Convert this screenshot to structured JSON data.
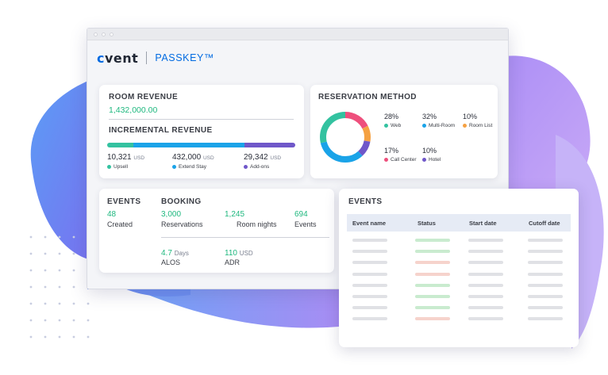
{
  "window": {
    "brand_logo": "cvent",
    "brand_logo_accent": "c",
    "brand_logo_rest": "vent",
    "product_name": "PASSKEY™"
  },
  "revenue": {
    "room_revenue_title": "ROOM REVENUE",
    "room_revenue_value": "1,432,000.00",
    "incremental_title": "INCREMENTAL REVENUE",
    "bar_shares": [
      0.14,
      0.59,
      0.27
    ],
    "bar_colors": [
      "#33c2a0",
      "#1aa3e8",
      "#6f57c9"
    ],
    "items": [
      {
        "value": "10,321",
        "unit": "USD",
        "label": "Upsell",
        "color": "#33c2a0"
      },
      {
        "value": "432,000",
        "unit": "USD",
        "label": "Extend Stay",
        "color": "#1aa3e8"
      },
      {
        "value": "29,342",
        "unit": "USD",
        "label": "Add-ons",
        "color": "#6f57c9"
      }
    ]
  },
  "reservation": {
    "title": "RESERVATION METHOD",
    "methods": [
      {
        "pct": "28%",
        "label": "Web",
        "color": "#33c2a0",
        "share": 28
      },
      {
        "pct": "32%",
        "label": "Multi-Room",
        "color": "#1aa3e8",
        "share": 32
      },
      {
        "pct": "10%",
        "label": "Room List",
        "color": "#f5a142",
        "share": 10
      },
      {
        "pct": "17%",
        "label": "Call Center",
        "color": "#ee4f7c",
        "share": 17
      },
      {
        "pct": "10%",
        "label": "Hotel",
        "color": "#6f57c9",
        "share": 10
      }
    ]
  },
  "stats": {
    "events_title": "EVENTS",
    "events_value": "48",
    "events_label": "Created",
    "booking_title": "BOOKING",
    "reservations_value": "3,000",
    "reservations_label": "Reservations",
    "room_nights_value": "1,245",
    "room_nights_label": "Room nights",
    "booking_events_value": "694",
    "booking_events_label": "Events",
    "alos_value": "4.7",
    "alos_unit": "Days",
    "alos_label": "ALOS",
    "adr_value": "110",
    "adr_unit": "USD",
    "adr_label": "ADR"
  },
  "events_table": {
    "title": "EVENTS",
    "columns": [
      "Event name",
      "Status",
      "Start date",
      "Cutoff date"
    ],
    "status_colors": {
      "green": "#c9ebcf",
      "red": "#f6d3cc",
      "placeholder": "#e0e1e5"
    },
    "row_statuses": [
      "green",
      "green",
      "red",
      "red",
      "green",
      "green",
      "green",
      "red"
    ]
  }
}
